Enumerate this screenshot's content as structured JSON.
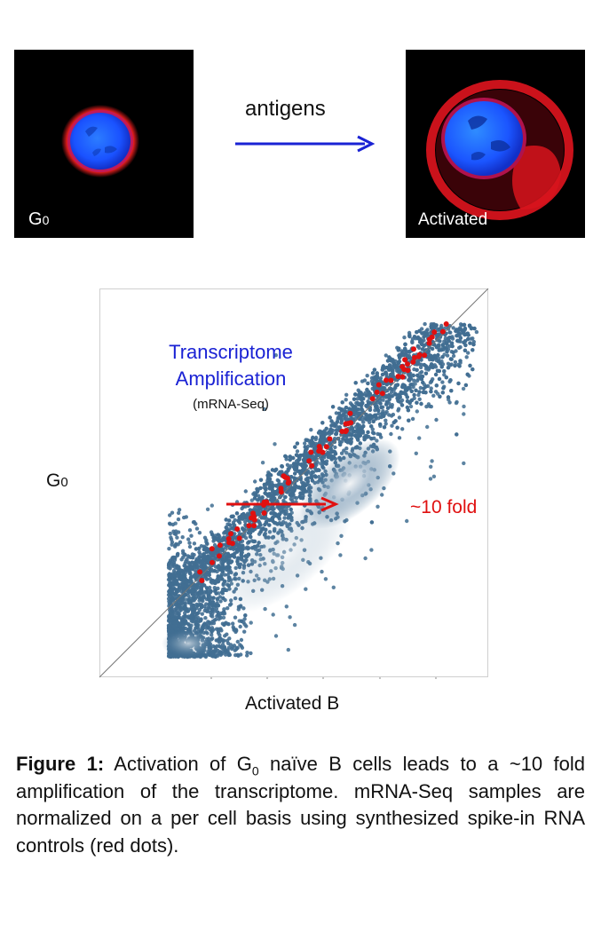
{
  "top_figure": {
    "left_panel_label_main": "G",
    "left_panel_label_sub": "0",
    "right_panel_label": "Activated",
    "arrow_label": "antigens",
    "arrow_color": "#1a22d4"
  },
  "chart_data": {
    "type": "scatter",
    "title_line1": "Transcriptome",
    "title_line2": "Amplification",
    "subtitle": "(mRNA-Seq)",
    "xlabel": "Activated B",
    "ylabel_main": "G",
    "ylabel_sub": "0",
    "annotation": "~10 fold",
    "series": [
      {
        "name": "genes",
        "color": "#416e92"
      },
      {
        "name": "spike-in RNA controls",
        "color": "#e01010"
      }
    ],
    "diagonal": true,
    "fold_change": 10
  },
  "caption": {
    "bold_label": "Figure 1:",
    "text_part1": " Activation of G",
    "text_sub": "0",
    "text_part2": " naïve B cells leads to a ~10 fold amplification of the transcriptome. mRNA-Seq samples are normalized on a per cell basis using synthesized spike-in RNA controls (red dots)."
  }
}
